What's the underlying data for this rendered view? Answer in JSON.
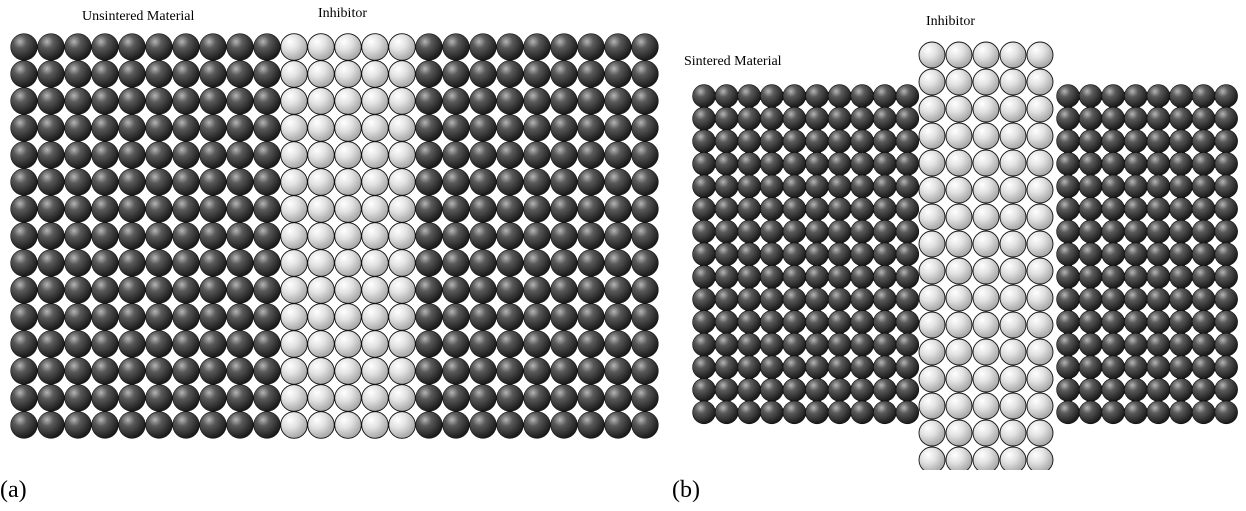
{
  "panel_a": {
    "caption": "(a)",
    "label_material": "Unsintered Material",
    "label_inhibitor": "Inhibitor",
    "grid": {
      "rows": 15,
      "cols_left": 10,
      "cols_inhibitor": 5,
      "cols_right": 9
    }
  },
  "panel_b": {
    "caption": "(b)",
    "label_material": "Sintered Material",
    "label_inhibitor": "Inhibitor",
    "grid": {
      "rows_material": 15,
      "rows_inhibitor": 16,
      "cols_left": 10,
      "cols_inhibitor": 5,
      "cols_right": 8
    }
  },
  "colors": {
    "dark_particle": "#3b3b3b",
    "light_particle": "#d9d9d9",
    "particle_outline": "#111111"
  }
}
